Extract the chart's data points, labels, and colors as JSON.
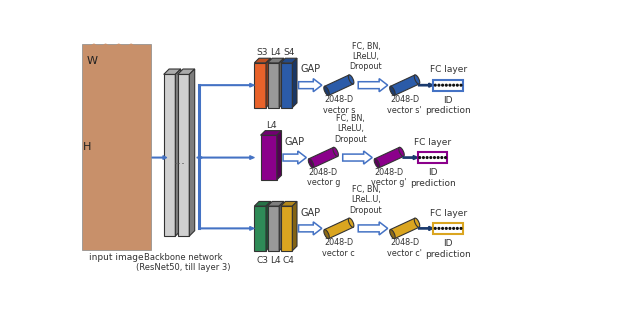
{
  "bg_color": "#ffffff",
  "hand_label_w": "W",
  "hand_label_h": "H",
  "hand_caption": "input image",
  "backbone_caption": "Backbone network\n(ResNet50, till layer 3)",
  "branch1": {
    "layer_labels": [
      "S3",
      "L4",
      "S4"
    ],
    "layer_colors": [
      "#E8622A",
      "#999999",
      "#2B5BA8"
    ],
    "gap_label": "GAP",
    "vec_color": "#2B5BA8",
    "vec_label": "2048-D\nvector s",
    "fc_dropout": "FC, BN,\nLReLU,\nDropout",
    "vec2_color": "#2B5BA8",
    "vec2_label": "2048-D\nvector s'",
    "box_color": "#4472C4",
    "box_label": "FC layer",
    "id_label": "ID\nprediction"
  },
  "branch2": {
    "layer_labels": [
      "L4"
    ],
    "layer_colors": [
      "#8B008B"
    ],
    "gap_label": "GAP",
    "vec_color": "#8B008B",
    "vec_label": "2048-D\nvector g",
    "fc_dropout": "FC, BN,\nLReLU,\nDropout",
    "vec2_color": "#8B008B",
    "vec2_label": "2048-D\nvector g'",
    "box_color": "#8B008B",
    "box_label": "FC layer",
    "id_label": "ID\nprediction"
  },
  "branch3": {
    "layer_labels": [
      "C3",
      "L4",
      "C4"
    ],
    "layer_colors": [
      "#2E8B57",
      "#999999",
      "#DAA520"
    ],
    "gap_label": "GAP",
    "vec_color": "#DAA520",
    "vec_label": "2048-D\nvector c",
    "fc_dropout": "FC, BN,\nLReL.U,\nDropout",
    "vec2_color": "#DAA520",
    "vec2_label": "2048-D\nvector c'",
    "box_color": "#DAA520",
    "box_label": "FC layer",
    "id_label": "ID\nprediction"
  },
  "arrow_color": "#4472C4"
}
